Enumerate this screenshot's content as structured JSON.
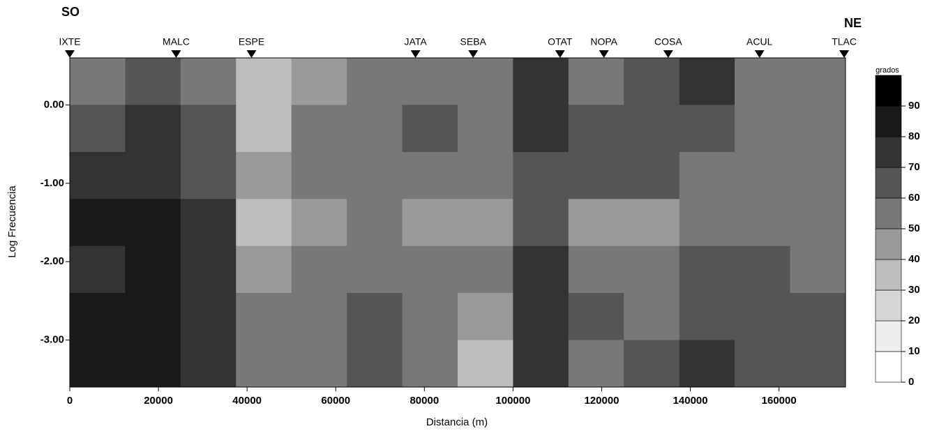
{
  "chart_data": {
    "type": "heatmap",
    "left_label": "SO",
    "right_label": "NE",
    "xlabel": "Distancia (m)",
    "ylabel": "Log Frecuencia",
    "colorbar_label": "grados",
    "xlim": [
      0,
      175000
    ],
    "ylim": [
      -3.6,
      0.6
    ],
    "xticks": [
      0,
      20000,
      40000,
      60000,
      80000,
      100000,
      120000,
      140000,
      160000
    ],
    "yticks": [
      {
        "value": 0,
        "label": "0.00"
      },
      {
        "value": -1,
        "label": "-1.00"
      },
      {
        "value": -2,
        "label": "-2.00"
      },
      {
        "value": -3,
        "label": "-3.00"
      }
    ],
    "clim": [
      0,
      100
    ],
    "cticks": [
      0,
      10,
      20,
      30,
      40,
      50,
      60,
      70,
      80,
      90
    ],
    "colors": [
      "#ffffff",
      "#eeeeee",
      "#d6d6d6",
      "#bdbdbd",
      "#9a9a9a",
      "#787878",
      "#555555",
      "#333333",
      "#1a1a1a",
      "#000000"
    ],
    "stations": [
      {
        "name": "IXTE",
        "x": 0
      },
      {
        "name": "MALC",
        "x": 24000
      },
      {
        "name": "ESPE",
        "x": 41000
      },
      {
        "name": "JATA",
        "x": 78000
      },
      {
        "name": "SEBA",
        "x": 91000
      },
      {
        "name": "OTAT",
        "x": 110600
      },
      {
        "name": "NOPA",
        "x": 120500
      },
      {
        "name": "COSA",
        "x": 135000
      },
      {
        "name": "ACUL",
        "x": 155600
      },
      {
        "name": "TLAC",
        "x": 174700
      }
    ],
    "x": [
      6250,
      18750,
      31250,
      43750,
      56250,
      68750,
      81250,
      93750,
      106250,
      118750,
      131250,
      143750,
      156250,
      168750
    ],
    "y": [
      0.3,
      -0.3,
      -0.9,
      -1.5,
      -2.1,
      -2.7,
      -3.3
    ],
    "z": [
      [
        55,
        60,
        55,
        35,
        45,
        55,
        55,
        50,
        75,
        55,
        60,
        70,
        55,
        50
      ],
      [
        65,
        70,
        60,
        35,
        50,
        55,
        60,
        55,
        70,
        60,
        65,
        60,
        55,
        55
      ],
      [
        75,
        75,
        65,
        45,
        50,
        55,
        50,
        55,
        65,
        60,
        60,
        55,
        55,
        55
      ],
      [
        80,
        80,
        70,
        35,
        45,
        50,
        40,
        40,
        60,
        45,
        45,
        50,
        50,
        55
      ],
      [
        75,
        80,
        70,
        45,
        50,
        55,
        50,
        50,
        70,
        55,
        50,
        65,
        60,
        55
      ],
      [
        80,
        85,
        75,
        50,
        55,
        65,
        55,
        45,
        75,
        60,
        55,
        65,
        65,
        60
      ],
      [
        80,
        85,
        75,
        50,
        55,
        60,
        50,
        35,
        70,
        55,
        60,
        70,
        65,
        60
      ]
    ]
  }
}
